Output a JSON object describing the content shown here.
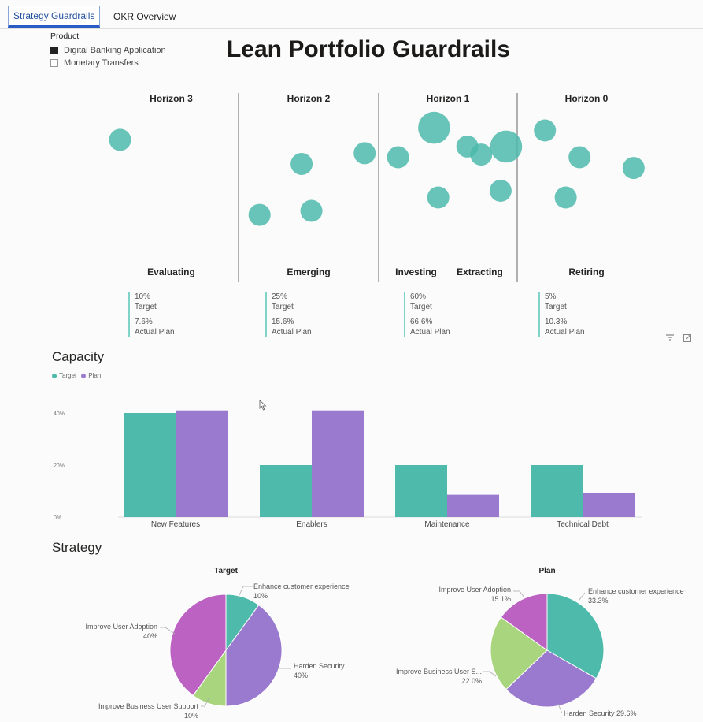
{
  "tabs": [
    {
      "label": "Strategy Guardrails",
      "active": true
    },
    {
      "label": "OKR Overview",
      "active": false
    }
  ],
  "slicer": {
    "title": "Product",
    "items": [
      {
        "label": "Digital Banking Application",
        "checked": true
      },
      {
        "label": "Monetary Transfers",
        "checked": false
      }
    ]
  },
  "page_title": "Lean Portfolio Guardrails",
  "horizons": [
    {
      "title": "Horizon 3",
      "stages": [
        "Evaluating"
      ],
      "target": "10%",
      "target_label": "Target",
      "actual": "7.6%",
      "actual_label": "Actual Plan"
    },
    {
      "title": "Horizon 2",
      "stages": [
        "Emerging"
      ],
      "target": "25%",
      "target_label": "Target",
      "actual": "15.6%",
      "actual_label": "Actual Plan"
    },
    {
      "title": "Horizon 1",
      "stages": [
        "Investing",
        "Extracting"
      ],
      "target": "60%",
      "target_label": "Target",
      "actual": "66.6%",
      "actual_label": "Actual Plan"
    },
    {
      "title": "Horizon 0",
      "stages": [
        "Retiring"
      ],
      "target": "5%",
      "target_label": "Target",
      "actual": "10.3%",
      "actual_label": "Actual Plan"
    }
  ],
  "capacity_title": "Capacity",
  "strategy_title": "Strategy",
  "colors": {
    "teal": "#4dbaac",
    "purple": "#9a7ace",
    "magenta": "#bb62c2",
    "green": "#a9d57e",
    "bubble": "#4dbaac"
  },
  "chart_data": [
    {
      "type": "scatter",
      "title": "",
      "note": "Bubble positions within each horizon column (relative units 0-100; size relative)",
      "series": [
        {
          "name": "Horizon 3",
          "points": [
            {
              "x": 12,
              "y": 78,
              "size": 1.0
            }
          ]
        },
        {
          "name": "Horizon 2",
          "points": [
            {
              "x": 45,
              "y": 60,
              "size": 1.0
            },
            {
              "x": 90,
              "y": 68,
              "size": 1.0
            },
            {
              "x": 15,
              "y": 22,
              "size": 1.0
            },
            {
              "x": 52,
              "y": 25,
              "size": 1.0
            }
          ]
        },
        {
          "name": "Horizon 1",
          "points": [
            {
              "x": 14,
              "y": 65,
              "size": 1.0
            },
            {
              "x": 40,
              "y": 87,
              "size": 1.45
            },
            {
              "x": 64,
              "y": 73,
              "size": 1.0
            },
            {
              "x": 74,
              "y": 67,
              "size": 1.0
            },
            {
              "x": 92,
              "y": 73,
              "size": 1.45
            },
            {
              "x": 43,
              "y": 35,
              "size": 1.0
            },
            {
              "x": 88,
              "y": 40,
              "size": 1.0
            }
          ]
        },
        {
          "name": "Horizon 0",
          "points": [
            {
              "x": 20,
              "y": 85,
              "size": 1.0
            },
            {
              "x": 45,
              "y": 65,
              "size": 1.0
            },
            {
              "x": 84,
              "y": 57,
              "size": 1.0
            },
            {
              "x": 35,
              "y": 35,
              "size": 1.0
            }
          ]
        }
      ]
    },
    {
      "type": "bar",
      "title": "Capacity",
      "categories": [
        "New Features",
        "Enablers",
        "Maintenance",
        "Technical Debt"
      ],
      "series": [
        {
          "name": "Target",
          "values": [
            40,
            20,
            20,
            20
          ]
        },
        {
          "name": "Plan",
          "values": [
            41,
            41,
            8.6,
            9.3
          ]
        }
      ],
      "yticks": [
        "0%",
        "20%",
        "40%"
      ],
      "ylim": [
        0,
        45
      ]
    },
    {
      "type": "pie",
      "title": "Target",
      "slices": [
        {
          "label": "Enhance customer experience",
          "value": 10,
          "pct": "10%",
          "color": "#4dbaac"
        },
        {
          "label": "Harden Security",
          "value": 40,
          "pct": "40%",
          "color": "#9a7ace"
        },
        {
          "label": "Improve Business User Support",
          "value": 10,
          "pct": "10%",
          "color": "#a9d57e"
        },
        {
          "label": "Improve User Adoption",
          "value": 40,
          "pct": "40%",
          "color": "#bb62c2"
        }
      ]
    },
    {
      "type": "pie",
      "title": "Plan",
      "slices": [
        {
          "label": "Enhance customer experience",
          "value": 33.3,
          "pct": "33.3%",
          "color": "#4dbaac"
        },
        {
          "label": "Harden Security",
          "value": 29.6,
          "pct": "29.6%",
          "color": "#9a7ace"
        },
        {
          "label": "Improve Business User S...",
          "value": 22.0,
          "pct": "22.0%",
          "color": "#a9d57e"
        },
        {
          "label": "Improve User Adoption",
          "value": 15.1,
          "pct": "15.1%",
          "color": "#bb62c2"
        }
      ]
    }
  ]
}
